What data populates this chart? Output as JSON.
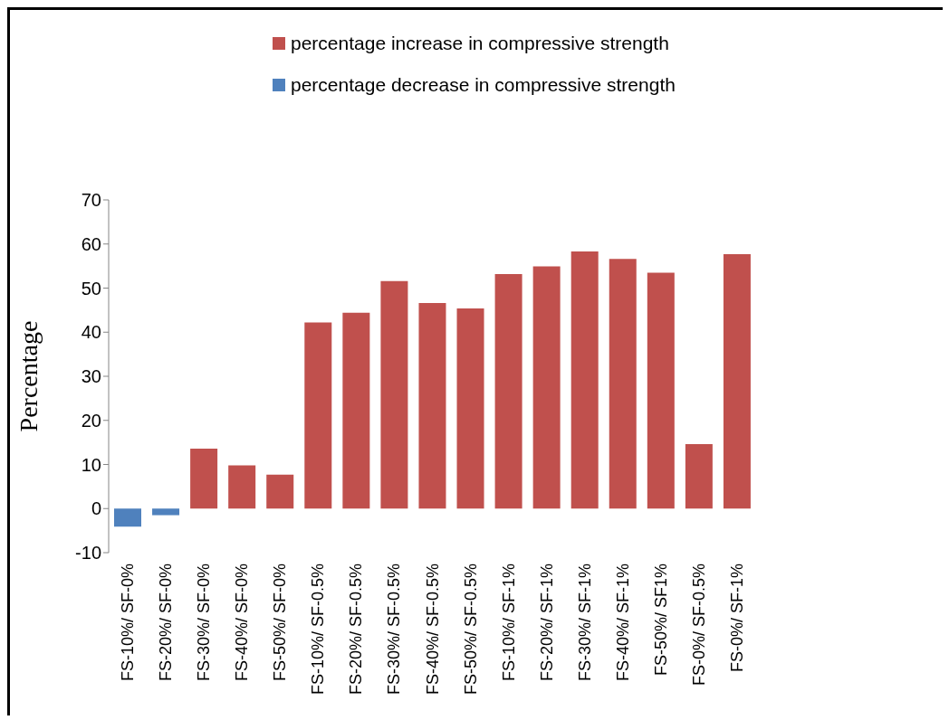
{
  "chart_data": {
    "type": "bar",
    "stacked": true,
    "ylabel": "Percentage",
    "categories": [
      "FS-10%/ SF-0%",
      "FS-20%/ SF-0%",
      "FS-30%/ SF-0%",
      "FS-40%/ SF-0%",
      "FS-50%/ SF-0%",
      "FS-10%/ SF-0.5%",
      "FS-20%/ SF-0.5%",
      "FS-30%/ SF-0.5%",
      "FS-40%/ SF-0.5%",
      "FS-50%/ SF-0.5%",
      "FS-10%/ SF-1%",
      "FS-20%/ SF-1%",
      "FS-30%/ SF-1%",
      "FS-40%/ SF-1%",
      "FS-50%/ SF1%",
      "FS-0%/ SF-0.5%",
      "FS-0%/ SF-1%"
    ],
    "series": [
      {
        "name": "percentage increase in compressive strength",
        "color": "#c0504d",
        "values": [
          null,
          null,
          13.6,
          9.8,
          7.7,
          42.2,
          44.4,
          51.6,
          46.6,
          45.4,
          53.2,
          54.9,
          58.3,
          56.6,
          53.5,
          14.6,
          57.7
        ]
      },
      {
        "name": "percentage decrease in compressive strength",
        "color": "#4f81bd",
        "values": [
          -4.1,
          -1.5,
          null,
          null,
          null,
          null,
          null,
          null,
          null,
          null,
          null,
          null,
          null,
          null,
          null,
          null,
          null
        ]
      }
    ],
    "ylim": [
      -10,
      70
    ],
    "yticks": [
      -10,
      0,
      10,
      20,
      30,
      40,
      50,
      60,
      70
    ],
    "grid": false,
    "legend": "top"
  }
}
